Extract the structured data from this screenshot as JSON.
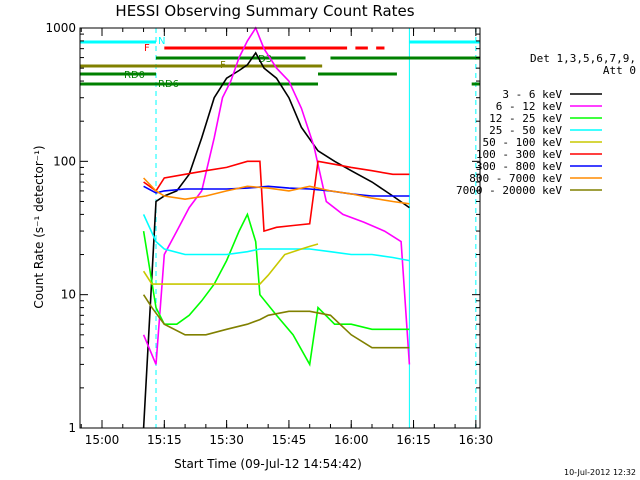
{
  "chart_data": {
    "type": "line",
    "title": "HESSI Observing Summary Count Rates",
    "xlabel": "Start Time (09-Jul-12 14:54:42)",
    "ylabel": "Count Rate (s⁻¹ detector⁻¹)",
    "y_scale": "log",
    "ylim": [
      1,
      1000
    ],
    "xlim": [
      "14:54:42",
      "16:31"
    ],
    "x_ticks": [
      "15:00",
      "15:15",
      "15:30",
      "15:45",
      "16:00",
      "16:15",
      "16:30"
    ],
    "y_ticks": [
      "1",
      "10",
      "100",
      "1000"
    ],
    "legend_position": "right",
    "legend_header": [
      "Det 1,3,5,6,7,9,",
      "Att 0"
    ],
    "footer_stamp": "10-Jul-2012 12:32",
    "series": [
      {
        "name": "3 - 6 keV",
        "color": "#000000",
        "x": [
          "15:10",
          "15:13",
          "15:15",
          "15:18",
          "15:21",
          "15:24",
          "15:27",
          "15:30",
          "15:33",
          "15:35",
          "15:37",
          "15:39",
          "15:42",
          "15:45",
          "15:48",
          "15:52",
          "15:56",
          "16:00",
          "16:05",
          "16:10",
          "16:14"
        ],
        "values": [
          1,
          50,
          55,
          60,
          80,
          150,
          300,
          420,
          480,
          530,
          650,
          500,
          420,
          300,
          180,
          120,
          100,
          85,
          70,
          55,
          45
        ]
      },
      {
        "name": "6 - 12 keV",
        "color": "#ff00ff",
        "x": [
          "15:10",
          "15:13",
          "15:15",
          "15:18",
          "15:21",
          "15:24",
          "15:27",
          "15:29",
          "15:31",
          "15:33",
          "15:35",
          "15:37",
          "15:39",
          "15:42",
          "15:45",
          "15:48",
          "15:51",
          "15:54",
          "15:58",
          "16:03",
          "16:08",
          "16:12",
          "16:14"
        ],
        "values": [
          5,
          3,
          20,
          30,
          45,
          60,
          150,
          300,
          400,
          600,
          800,
          1000,
          700,
          500,
          400,
          250,
          130,
          50,
          40,
          35,
          30,
          25,
          3
        ]
      },
      {
        "name": "12 - 25 keV",
        "color": "#00ff00",
        "x": [
          "15:10",
          "15:13",
          "15:15",
          "15:18",
          "15:21",
          "15:24",
          "15:27",
          "15:30",
          "15:33",
          "15:35",
          "15:37",
          "15:38",
          "15:42",
          "15:46",
          "15:50",
          "15:52",
          "15:56",
          "16:00",
          "16:05",
          "16:10",
          "16:14"
        ],
        "values": [
          30,
          8,
          6,
          6,
          7,
          9,
          12,
          18,
          30,
          40,
          25,
          10,
          7,
          5,
          3,
          8,
          6,
          6,
          5.5,
          5.5,
          5.5
        ]
      },
      {
        "name": "25 - 50 keV",
        "color": "#00ffff",
        "x": [
          "15:10",
          "15:13",
          "15:15",
          "15:20",
          "15:25",
          "15:30",
          "15:35",
          "15:38",
          "15:45",
          "15:50",
          "15:55",
          "16:00",
          "16:05",
          "16:10",
          "16:14"
        ],
        "values": [
          40,
          25,
          22,
          20,
          20,
          20,
          21,
          22,
          22,
          22,
          21,
          20,
          20,
          19,
          18
        ]
      },
      {
        "name": "50 - 100 keV",
        "color": "#c8c800",
        "x": [
          "15:10",
          "15:12",
          "15:38",
          "15:40",
          "15:44",
          "15:48",
          "15:50",
          "15:52"
        ],
        "values": [
          15,
          12,
          12,
          14,
          20,
          22,
          23,
          24
        ]
      },
      {
        "name": "100 - 300 keV",
        "color": "#ff0000",
        "x": [
          "15:10",
          "15:13",
          "15:15",
          "15:20",
          "15:25",
          "15:30",
          "15:35",
          "15:38",
          "15:39",
          "15:42",
          "15:46",
          "15:50",
          "15:52",
          "15:56",
          "16:00",
          "16:05",
          "16:10",
          "16:14"
        ],
        "values": [
          70,
          60,
          75,
          80,
          85,
          90,
          100,
          100,
          30,
          32,
          33,
          34,
          100,
          95,
          90,
          85,
          80,
          80
        ]
      },
      {
        "name": "300 - 800 keV",
        "color": "#0000ff",
        "x": [
          "15:10",
          "15:13",
          "15:15",
          "15:20",
          "15:25",
          "15:30",
          "15:35",
          "15:40",
          "15:45",
          "15:50",
          "15:55",
          "16:00",
          "16:05",
          "16:10",
          "16:14"
        ],
        "values": [
          65,
          58,
          60,
          62,
          62,
          62,
          63,
          65,
          63,
          62,
          60,
          57,
          55,
          55,
          55
        ]
      },
      {
        "name": "800 - 7000 keV",
        "color": "#ff8c00",
        "x": [
          "15:10",
          "15:13",
          "15:15",
          "15:20",
          "15:25",
          "15:30",
          "15:35",
          "15:40",
          "15:45",
          "15:50",
          "15:55",
          "16:00",
          "16:05",
          "16:10",
          "16:14"
        ],
        "values": [
          75,
          60,
          55,
          52,
          55,
          60,
          65,
          63,
          60,
          65,
          60,
          57,
          53,
          50,
          48
        ]
      },
      {
        "name": "7000 - 20000 keV",
        "color": "#808000",
        "x": [
          "15:10",
          "15:12",
          "15:15",
          "15:20",
          "15:25",
          "15:30",
          "15:35",
          "15:38",
          "15:40",
          "15:45",
          "15:50",
          "15:55",
          "16:00",
          "16:05",
          "16:10",
          "16:14"
        ],
        "values": [
          10,
          8,
          6,
          5,
          5,
          5.5,
          6,
          6.5,
          7,
          7.5,
          7.5,
          7,
          5,
          4,
          4,
          4
        ]
      }
    ],
    "bars": [
      {
        "label": "N",
        "color": "#00ffff",
        "segments": [
          [
            "14:54:42",
            "15:13"
          ],
          [
            "16:14",
            "16:31"
          ]
        ]
      },
      {
        "label": "F",
        "color": "#ff0000",
        "segments": [
          [
            "15:15",
            "15:59"
          ],
          [
            "16:01",
            "16:04"
          ],
          [
            "16:06",
            "16:08"
          ]
        ]
      },
      {
        "label": "D3",
        "color": "#008000",
        "segments": [
          [
            "15:13",
            "15:49"
          ],
          [
            "15:55",
            "16:31"
          ]
        ]
      },
      {
        "label": "F",
        "color": "#808000",
        "segments": [
          [
            "14:54:42",
            "15:53"
          ]
        ]
      },
      {
        "label": "RD0",
        "color": "#008000",
        "segments": [
          [
            "14:54:42",
            "15:13"
          ],
          [
            "15:52",
            "16:11"
          ]
        ]
      },
      {
        "label": "RD6",
        "color": "#008000",
        "segments": [
          [
            "14:54:42",
            "15:52"
          ],
          [
            "16:29",
            "16:31"
          ]
        ]
      }
    ],
    "vlines": [
      "14:54:42",
      "15:13",
      "16:14",
      "16:30"
    ]
  }
}
